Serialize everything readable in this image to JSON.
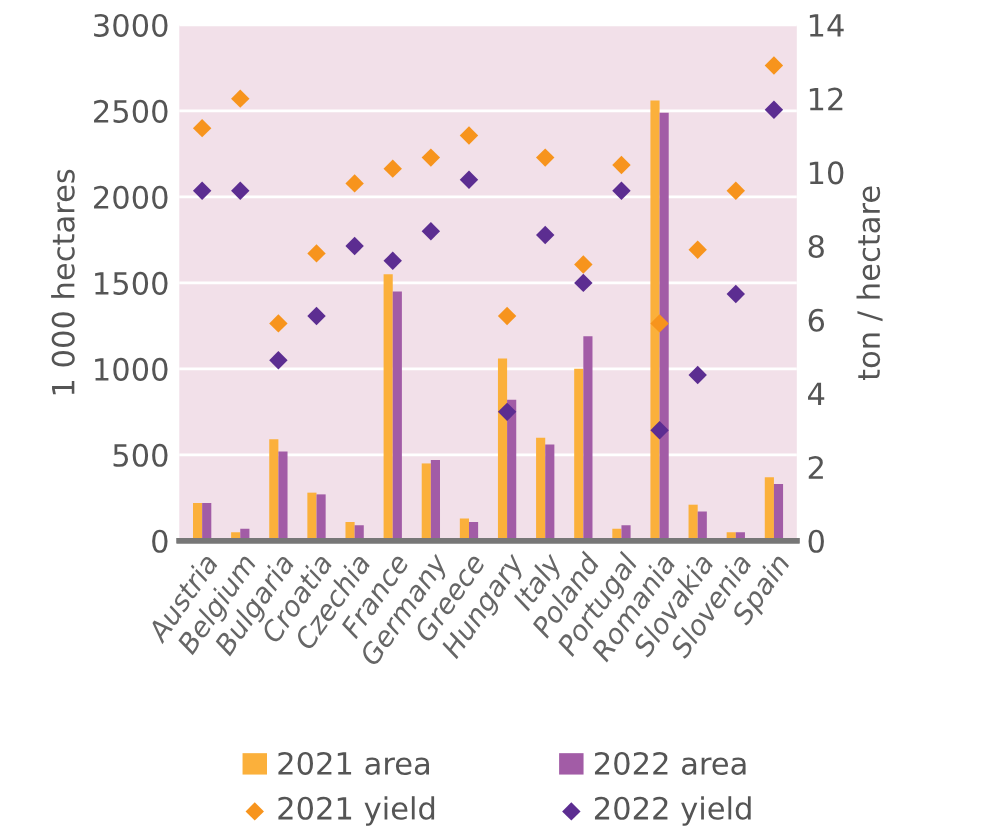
{
  "chart_data": {
    "type": "bar",
    "ylabel": "1 000 hectares",
    "y2label": "ton / hectare",
    "categories": [
      "Austria",
      "Belgium",
      "Bulgaria",
      "Croatia",
      "Czechia",
      "France",
      "Germany",
      "Greece",
      "Hungary",
      "Italy",
      "Poland",
      "Portugal",
      "Romania",
      "Slovakia",
      "Slovenia",
      "Spain"
    ],
    "series": [
      {
        "name": "2021 area",
        "color": "#fbb03b",
        "values": [
          220,
          50,
          590,
          280,
          110,
          1550,
          450,
          130,
          1060,
          600,
          1000,
          70,
          2560,
          210,
          50,
          370
        ]
      },
      {
        "name": "2022 area",
        "color": "#a25ca6",
        "values": [
          220,
          70,
          520,
          270,
          90,
          1450,
          470,
          110,
          820,
          560,
          1190,
          90,
          2490,
          170,
          50,
          330
        ]
      },
      {
        "name": "2021 yield",
        "type": "scatter",
        "axis": "y2",
        "marker": "diamond",
        "color": "#f7941d",
        "values": [
          11.2,
          12.0,
          5.9,
          7.8,
          9.7,
          10.1,
          10.4,
          11.0,
          6.1,
          10.4,
          7.5,
          10.2,
          5.9,
          7.9,
          9.5,
          12.9
        ]
      },
      {
        "name": "2022 yield",
        "type": "scatter",
        "axis": "y2",
        "marker": "diamond",
        "color": "#5c2d91",
        "values": [
          9.5,
          9.5,
          4.9,
          6.1,
          8.0,
          7.6,
          8.4,
          9.8,
          3.5,
          8.3,
          7.0,
          9.5,
          3.0,
          4.5,
          6.7,
          11.7
        ]
      }
    ],
    "ylim": [
      0,
      3000
    ],
    "yticks": [
      0,
      500,
      1000,
      1500,
      2000,
      2500,
      3000
    ],
    "y2lim": [
      0,
      14
    ],
    "y2ticks": [
      0,
      2,
      4,
      6,
      8,
      10,
      12,
      14
    ],
    "grid": "y",
    "legend": "bottom"
  }
}
